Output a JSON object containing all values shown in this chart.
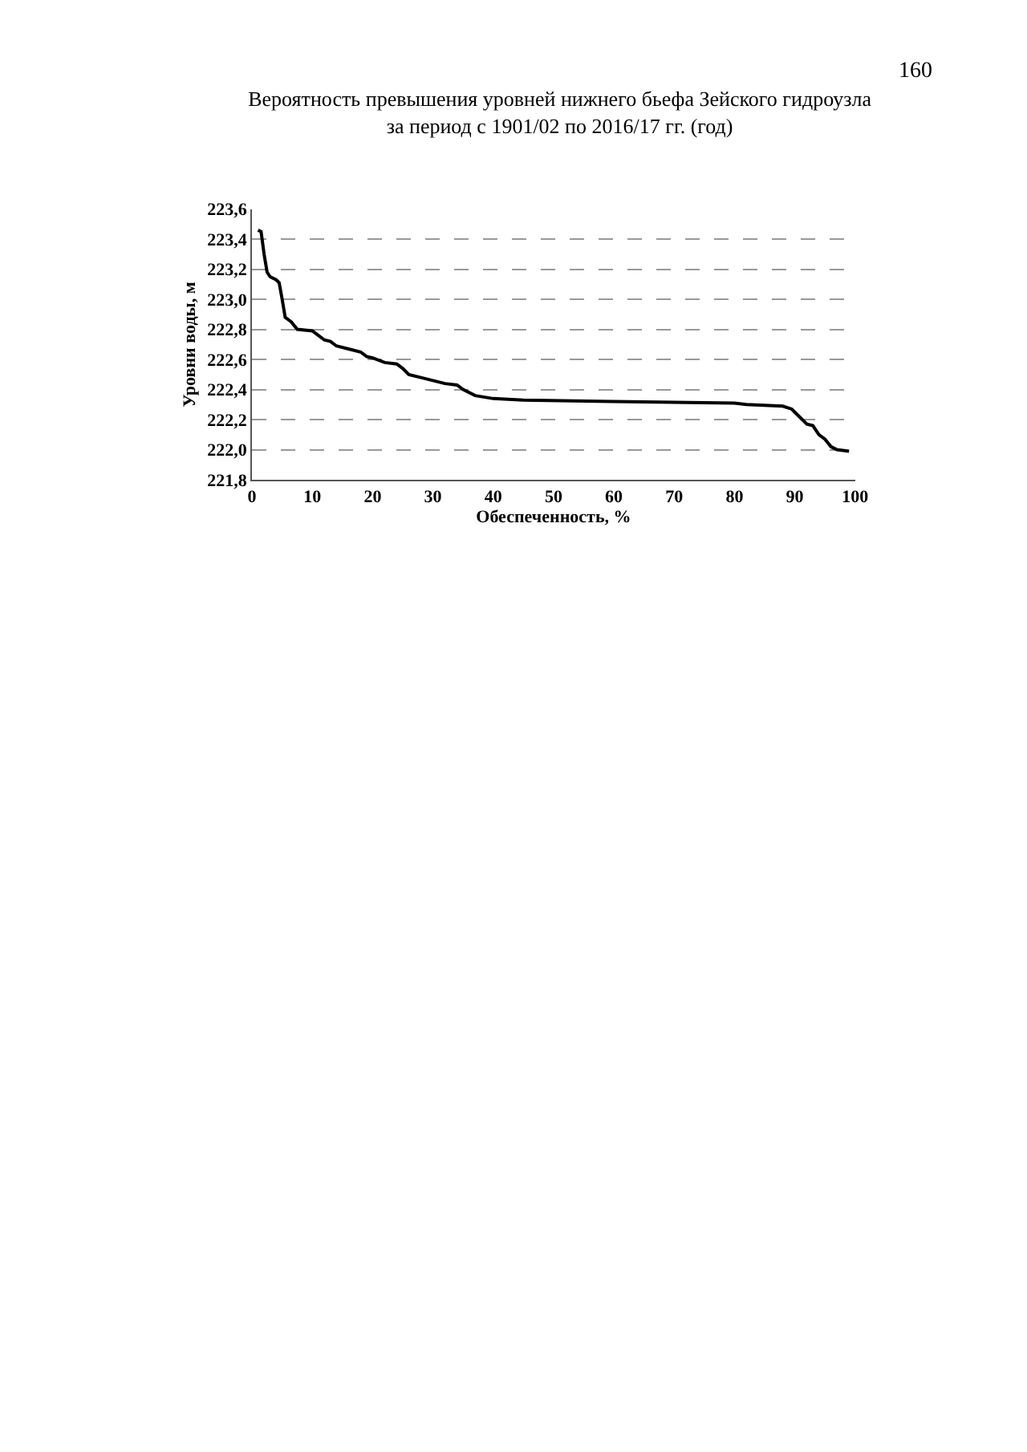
{
  "chart_data": {
    "type": "line",
    "title": "Вероятность превышения уровней нижнего бьефа Зейского гидроузла\nза период с 1901/02 по 2016/17 гг. (год)",
    "xlabel": "Обеспеченность, %",
    "ylabel": "Уровни воды, м",
    "annotations": [
      "160"
    ],
    "series": [
      {
        "color": "#000000",
        "x": [
          1,
          1.5,
          2,
          2.5,
          3,
          4,
          4.5,
          5,
          5.5,
          6.5,
          7.5,
          10,
          11,
          12,
          13,
          14,
          16,
          18,
          19,
          20,
          22,
          24,
          25,
          26,
          28,
          30,
          32,
          34,
          35,
          37,
          40,
          45,
          60,
          80,
          82,
          88,
          89.5,
          90.5,
          92,
          93,
          94,
          95,
          96,
          97,
          99
        ],
        "values": [
          223.46,
          223.45,
          223.3,
          223.18,
          223.15,
          223.13,
          223.11,
          223.0,
          222.88,
          222.85,
          222.8,
          222.79,
          222.76,
          222.73,
          222.72,
          222.69,
          222.67,
          222.65,
          222.62,
          222.61,
          222.58,
          222.57,
          222.54,
          222.5,
          222.48,
          222.46,
          222.44,
          222.43,
          222.4,
          222.36,
          222.34,
          222.33,
          222.32,
          222.31,
          222.3,
          222.29,
          222.27,
          222.23,
          222.17,
          222.16,
          222.1,
          222.07,
          222.02,
          222.0,
          221.99
        ]
      }
    ],
    "xlim": [
      0,
      100
    ],
    "xticks": [
      0,
      10,
      20,
      30,
      40,
      50,
      60,
      70,
      80,
      90,
      100
    ],
    "ylim": [
      221.8,
      223.6
    ],
    "yticks": [
      {
        "value": 221.8,
        "label": "221,8"
      },
      {
        "value": 222.0,
        "label": "222,0"
      },
      {
        "value": 222.2,
        "label": "222,2"
      },
      {
        "value": 222.4,
        "label": "222,4"
      },
      {
        "value": 222.6,
        "label": "222,6"
      },
      {
        "value": 222.8,
        "label": "222,8"
      },
      {
        "value": 223.0,
        "label": "223,0"
      },
      {
        "value": 223.2,
        "label": "223,2"
      },
      {
        "value": 223.4,
        "label": "223,4"
      },
      {
        "value": 223.6,
        "label": "223,6"
      }
    ],
    "grid": "y",
    "legend": false,
    "marker": "none",
    "line_style": "solid"
  }
}
